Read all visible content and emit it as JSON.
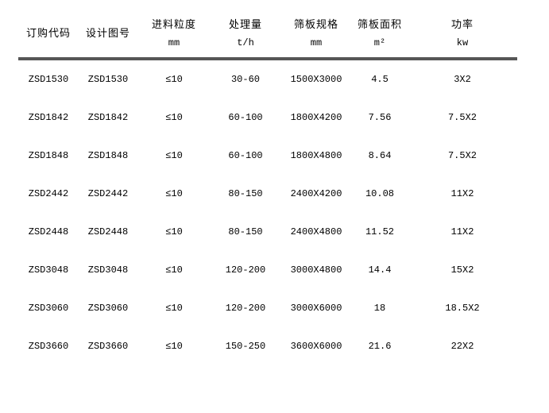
{
  "table": {
    "columns": [
      {
        "label": "订购代码",
        "unit": ""
      },
      {
        "label": "设计图号",
        "unit": ""
      },
      {
        "label": "进料粒度",
        "unit": "mm"
      },
      {
        "label": "处理量",
        "unit": "t/h"
      },
      {
        "label": "筛板规格",
        "unit": "mm"
      },
      {
        "label": "筛板面积",
        "unit": "m²"
      },
      {
        "label": "功率",
        "unit": "kw"
      }
    ],
    "rows": [
      [
        "ZSD1530",
        "ZSD1530",
        "≤10",
        "30-60",
        "1500X3000",
        "4.5",
        "3X2"
      ],
      [
        "ZSD1842",
        "ZSD1842",
        "≤10",
        "60-100",
        "1800X4200",
        "7.56",
        "7.5X2"
      ],
      [
        "ZSD1848",
        "ZSD1848",
        "≤10",
        "60-100",
        "1800X4800",
        "8.64",
        "7.5X2"
      ],
      [
        "ZSD2442",
        "ZSD2442",
        "≤10",
        "80-150",
        "2400X4200",
        "10.08",
        "11X2"
      ],
      [
        "ZSD2448",
        "ZSD2448",
        "≤10",
        "80-150",
        "2400X4800",
        "11.52",
        "11X2"
      ],
      [
        "ZSD3048",
        "ZSD3048",
        "≤10",
        "120-200",
        "3000X4800",
        "14.4",
        "15X2"
      ],
      [
        "ZSD3060",
        "ZSD3060",
        "≤10",
        "120-200",
        "3000X6000",
        "18",
        "18.5X2"
      ],
      [
        "ZSD3660",
        "ZSD3660",
        "≤10",
        "150-250",
        "3600X6000",
        "21.6",
        "22X2"
      ]
    ],
    "divider_color": "#565656",
    "text_color": "#000000",
    "background_color": "#ffffff"
  }
}
